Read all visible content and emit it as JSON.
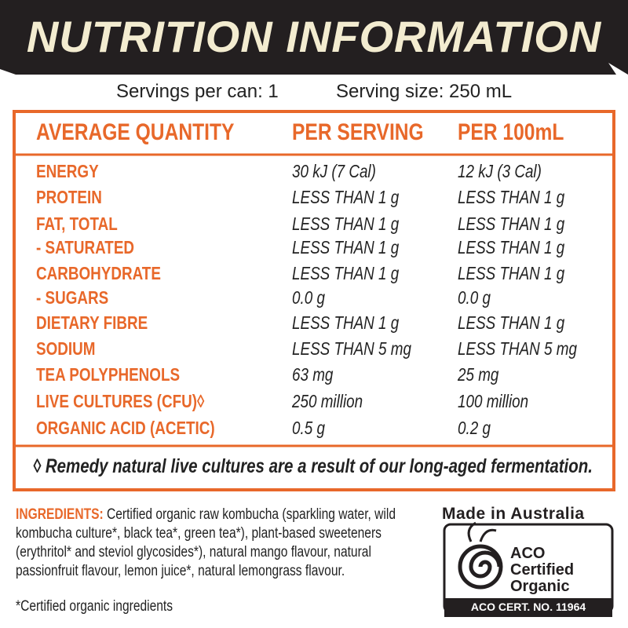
{
  "header": {
    "title": "NUTRITION INFORMATION"
  },
  "servings": {
    "per_can": "Servings per can: 1",
    "size": "Serving size: 250 mL"
  },
  "table": {
    "headers": [
      "AVERAGE QUANTITY",
      "PER SERVING",
      "PER 100mL"
    ],
    "rows": [
      [
        "ENERGY",
        "30 kJ (7 Cal)",
        "12 kJ (3 Cal)"
      ],
      [
        "PROTEIN",
        "LESS THAN 1 g",
        "LESS THAN 1 g"
      ],
      [
        "FAT, TOTAL",
        "LESS THAN 1 g",
        "LESS THAN 1 g"
      ],
      [
        "- SATURATED",
        "LESS THAN 1 g",
        "LESS THAN 1 g"
      ],
      [
        "CARBOHYDRATE",
        "LESS THAN 1 g",
        "LESS THAN 1 g"
      ],
      [
        "- SUGARS",
        "0.0 g",
        "0.0 g"
      ],
      [
        "DIETARY FIBRE",
        "LESS THAN 1 g",
        "LESS THAN 1 g"
      ],
      [
        "SODIUM",
        "LESS THAN 5 mg",
        "LESS THAN 5 mg"
      ],
      [
        "TEA POLYPHENOLS",
        "63 mg",
        "25 mg"
      ],
      [
        "LIVE CULTURES (CFU)◊",
        "250 million",
        "100 million"
      ],
      [
        "ORGANIC ACID (ACETIC)",
        "0.5 g",
        "0.2 g"
      ]
    ],
    "footnote": "◊ Remedy natural live cultures are a result of our long-aged fermentation."
  },
  "ingredients": {
    "label": "INGREDIENTS:",
    "text": "Certified organic raw kombucha (sparkling water, wild kombucha culture*, black tea*, green tea*), plant-based sweeteners (erythritol* and steviol glycosides*), natural mango flavour, natural passionfruit flavour, lemon juice*, natural lemongrass flavour.",
    "note": "*Certified organic ingredients"
  },
  "badge": {
    "origin": "Made in Australia",
    "lines": [
      "ACO",
      "Certified",
      "Organic"
    ],
    "cert": "ACO CERT. NO. 11964"
  }
}
